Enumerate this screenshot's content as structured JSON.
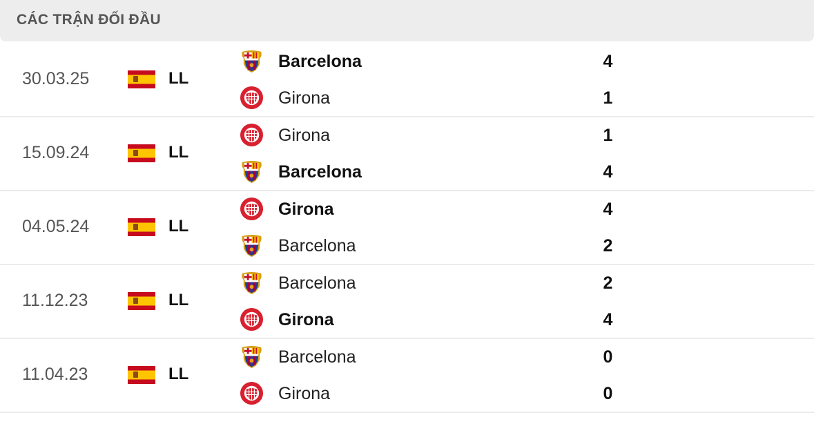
{
  "header": {
    "title": "CÁC TRẬN ĐỐI ĐẦU"
  },
  "colors": {
    "header_bg": "#ededed",
    "barca_blue": "#1c3f94",
    "barca_red": "#a50044",
    "girona_red": "#d8202f"
  },
  "matches": [
    {
      "date": "30.03.25",
      "league": "LL",
      "flag": "spain-flag-icon",
      "teams": [
        {
          "name": "Barcelona",
          "logo": "barcelona-crest-icon",
          "score": "4",
          "winner": true
        },
        {
          "name": "Girona",
          "logo": "girona-crest-icon",
          "score": "1",
          "winner": false
        }
      ]
    },
    {
      "date": "15.09.24",
      "league": "LL",
      "flag": "spain-flag-icon",
      "teams": [
        {
          "name": "Girona",
          "logo": "girona-crest-icon",
          "score": "1",
          "winner": false
        },
        {
          "name": "Barcelona",
          "logo": "barcelona-crest-icon",
          "score": "4",
          "winner": true
        }
      ]
    },
    {
      "date": "04.05.24",
      "league": "LL",
      "flag": "spain-flag-icon",
      "teams": [
        {
          "name": "Girona",
          "logo": "girona-crest-icon",
          "score": "4",
          "winner": true
        },
        {
          "name": "Barcelona",
          "logo": "barcelona-crest-icon",
          "score": "2",
          "winner": false
        }
      ]
    },
    {
      "date": "11.12.23",
      "league": "LL",
      "flag": "spain-flag-icon",
      "teams": [
        {
          "name": "Barcelona",
          "logo": "barcelona-crest-icon",
          "score": "2",
          "winner": false
        },
        {
          "name": "Girona",
          "logo": "girona-crest-icon",
          "score": "4",
          "winner": true
        }
      ]
    },
    {
      "date": "11.04.23",
      "league": "LL",
      "flag": "spain-flag-icon",
      "teams": [
        {
          "name": "Barcelona",
          "logo": "barcelona-crest-icon",
          "score": "0",
          "winner": false
        },
        {
          "name": "Girona",
          "logo": "girona-crest-icon",
          "score": "0",
          "winner": false
        }
      ]
    }
  ]
}
